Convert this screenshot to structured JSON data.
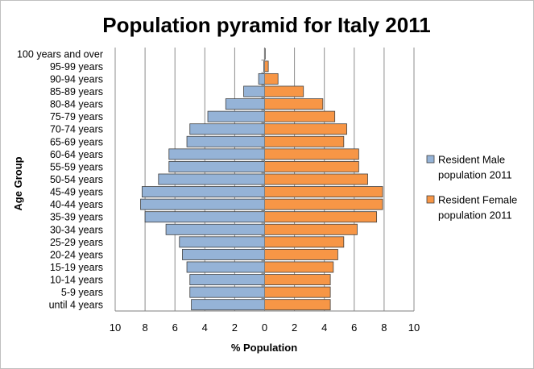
{
  "chart_data": {
    "type": "bar",
    "orientation": "horizontal",
    "layout": "population-pyramid",
    "title": "Population pyramid for Italy 2011",
    "xlabel": "% Population",
    "ylabel": "Age Group",
    "xlim": [
      -10,
      10
    ],
    "xticks": [
      -10,
      -8,
      -6,
      -4,
      -2,
      0,
      2,
      4,
      6,
      8,
      10
    ],
    "xtick_labels": [
      "10",
      "8",
      "6",
      "4",
      "2",
      "0",
      "2",
      "4",
      "6",
      "8",
      "10"
    ],
    "grid": "vertical",
    "legend": "right",
    "categories": [
      "until 4 years",
      "5-9 years",
      "10-14 years",
      "15-19 years",
      "20-24 years",
      "25-29 years",
      "30-34 years",
      "35-39 years",
      "40-44 years",
      "45-49 years",
      "50-54 years",
      "55-59 years",
      "60-64 years",
      "65-69 years",
      "70-74 years",
      "75-79 years",
      "80-84 years",
      "85-89 years",
      "90-94 years",
      "95-99 years",
      "100 years and over"
    ],
    "series": [
      {
        "name": "Resident Male population 2011",
        "legend_lines": [
          "Resident Male",
          "population 2011"
        ],
        "color": "#95b3d7",
        "side": "left",
        "values": [
          4.9,
          5.0,
          5.0,
          5.2,
          5.5,
          5.7,
          6.6,
          8.0,
          8.3,
          8.2,
          7.1,
          6.4,
          6.4,
          5.2,
          5.0,
          3.8,
          2.6,
          1.4,
          0.4,
          0.05,
          0.01
        ]
      },
      {
        "name": "Resident Female population 2011",
        "legend_lines": [
          "Resident Female",
          "population 2011"
        ],
        "color": "#f79646",
        "side": "right",
        "values": [
          4.4,
          4.4,
          4.4,
          4.6,
          4.9,
          5.3,
          6.2,
          7.5,
          7.9,
          7.9,
          6.9,
          6.3,
          6.3,
          5.3,
          5.5,
          4.7,
          3.9,
          2.6,
          0.9,
          0.25,
          0.03
        ]
      }
    ]
  }
}
